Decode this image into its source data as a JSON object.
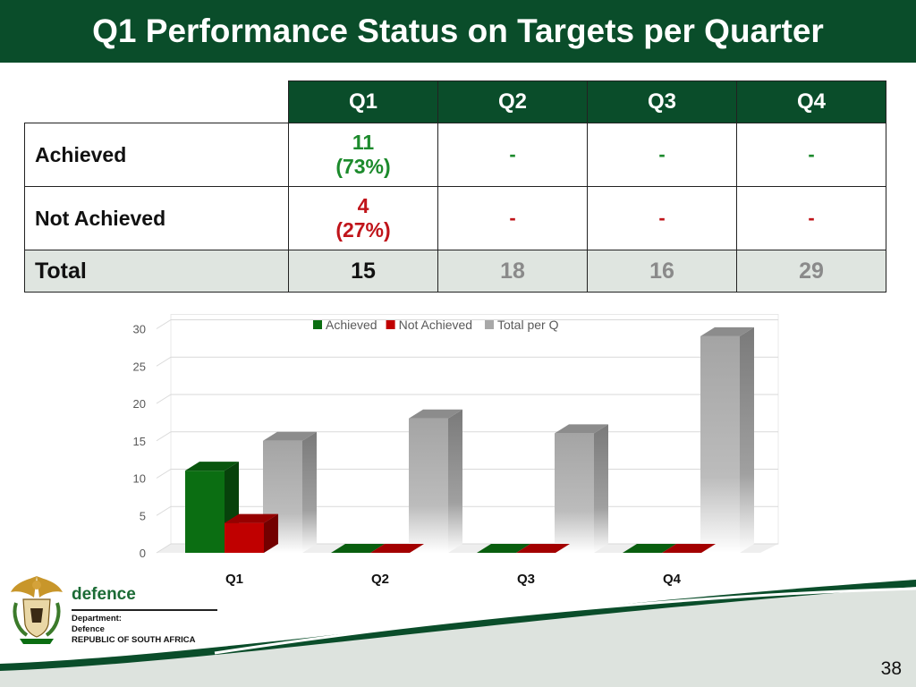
{
  "title": "Q1 Performance Status on Targets per Quarter",
  "table": {
    "headers": [
      "Q1",
      "Q2",
      "Q3",
      "Q4"
    ],
    "rows": [
      {
        "label": "Achieved",
        "q1_count": "11",
        "q1_pct": "(73%)",
        "others": [
          "-",
          "-",
          "-"
        ]
      },
      {
        "label": "Not Achieved",
        "q1_count": "4",
        "q1_pct": "(27%)",
        "others": [
          "-",
          "-",
          "-"
        ]
      }
    ],
    "total": {
      "label": "Total",
      "values": [
        "15",
        "18",
        "16",
        "29"
      ]
    }
  },
  "chart_data": {
    "type": "bar",
    "categories": [
      "Q1",
      "Q2",
      "Q3",
      "Q4"
    ],
    "series": [
      {
        "name": "Achieved",
        "values": [
          11,
          0,
          0,
          0
        ],
        "color": "#0b6e12"
      },
      {
        "name": "Not Achieved",
        "values": [
          4,
          0,
          0,
          0
        ],
        "color": "#c00000"
      },
      {
        "name": "Total per Q",
        "values": [
          15,
          18,
          16,
          29
        ],
        "color": "#a8a8a8"
      }
    ],
    "yticks": [
      0,
      5,
      10,
      15,
      20,
      25,
      30
    ],
    "ylim": [
      0,
      30
    ],
    "grid": true,
    "legend": "top",
    "title": "",
    "xlabel": "",
    "ylabel": ""
  },
  "footer": {
    "brand_word": "defence",
    "dept_lines": [
      "Department:",
      "Defence",
      "REPUBLIC OF SOUTH AFRICA"
    ],
    "page_number": "38"
  },
  "colors": {
    "header_green": "#0a4d2a",
    "brand_green": "#1b6b35"
  }
}
